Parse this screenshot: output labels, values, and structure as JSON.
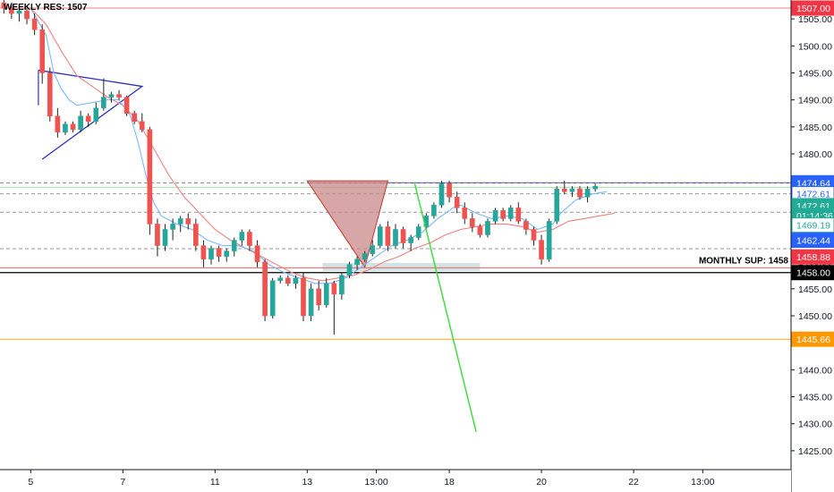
{
  "chart_data": {
    "type": "candlestick",
    "y_range": [
      1421.5,
      1508.5
    ],
    "y_ticks": [
      1425,
      1430,
      1435,
      1440,
      1445,
      1450,
      1455,
      1460,
      1465,
      1470,
      1475,
      1480,
      1485,
      1490,
      1495,
      1500,
      1505
    ],
    "y_tick_labels": [
      "1425.00",
      "1430.00",
      "1435.00",
      "1440.00",
      "1445.00",
      "1450.00",
      "1455.00",
      "1460.00",
      "1465.00",
      "1470.00",
      "1475.00",
      "1480.00",
      "1485.00",
      "1490.00",
      "1495.00",
      "1500.00",
      "1505.00"
    ],
    "x_range": [
      0,
      103
    ],
    "x_ticks": [
      {
        "x": 4,
        "label": "5"
      },
      {
        "x": 16,
        "label": "7"
      },
      {
        "x": 28,
        "label": "11"
      },
      {
        "x": 40,
        "label": "13"
      },
      {
        "x": 49,
        "label": "13:00"
      },
      {
        "x": 58.5,
        "label": "18"
      },
      {
        "x": 70.5,
        "label": "20"
      },
      {
        "x": 82.5,
        "label": "22"
      },
      {
        "x": 91.5,
        "label": "13:00"
      }
    ],
    "candles": [
      [
        1508,
        1509,
        1506,
        1507
      ],
      [
        1507,
        1508,
        1505,
        1506
      ],
      [
        1506,
        1507.5,
        1504.5,
        1506.5
      ],
      [
        1506.5,
        1507,
        1504,
        1505
      ],
      [
        1505,
        1506,
        1502,
        1503
      ],
      [
        1503,
        1504,
        1493,
        1495
      ],
      [
        1495,
        1496,
        1486,
        1487
      ],
      [
        1487,
        1488.5,
        1483,
        1484
      ],
      [
        1484,
        1486,
        1483.5,
        1485.5
      ],
      [
        1485.5,
        1486,
        1484,
        1484.5
      ],
      [
        1484.5,
        1488,
        1484,
        1487
      ],
      [
        1487,
        1487.5,
        1485,
        1486
      ],
      [
        1486,
        1489.5,
        1485.5,
        1488.5
      ],
      [
        1488.5,
        1494,
        1488,
        1490.5
      ],
      [
        1490.5,
        1491.5,
        1489.5,
        1491
      ],
      [
        1491,
        1491.8,
        1490,
        1490.5
      ],
      [
        1490.5,
        1490.8,
        1487,
        1487.5
      ],
      [
        1487.5,
        1488,
        1485.5,
        1486
      ],
      [
        1486,
        1487.5,
        1484,
        1484.5
      ],
      [
        1484.5,
        1485,
        1465,
        1467
      ],
      [
        1467,
        1468,
        1461,
        1463
      ],
      [
        1463,
        1467,
        1462,
        1466
      ],
      [
        1466,
        1468,
        1464,
        1467
      ],
      [
        1467,
        1468.5,
        1465.5,
        1468
      ],
      [
        1468,
        1469,
        1466,
        1467
      ],
      [
        1467,
        1468,
        1462,
        1463
      ],
      [
        1463,
        1464,
        1459,
        1460.5
      ],
      [
        1460.5,
        1463,
        1459.5,
        1462.5
      ],
      [
        1462.5,
        1463,
        1460,
        1461
      ],
      [
        1461,
        1462.5,
        1460,
        1462
      ],
      [
        1462,
        1464.5,
        1461,
        1464
      ],
      [
        1464,
        1466,
        1463,
        1465.5
      ],
      [
        1465.5,
        1466,
        1462,
        1463
      ],
      [
        1463,
        1464,
        1459,
        1460
      ],
      [
        1460,
        1460.5,
        1449,
        1450
      ],
      [
        1450,
        1457,
        1449.5,
        1456.5
      ],
      [
        1456.5,
        1457.5,
        1456,
        1457
      ],
      [
        1457,
        1457.5,
        1455.5,
        1456
      ],
      [
        1456,
        1457.5,
        1455,
        1457
      ],
      [
        1457,
        1458,
        1449,
        1450
      ],
      [
        1450,
        1456,
        1449,
        1455
      ],
      [
        1455,
        1456.5,
        1451,
        1452
      ],
      [
        1452,
        1457,
        1451.5,
        1456
      ],
      [
        1456,
        1456.5,
        1446.5,
        1454
      ],
      [
        1454,
        1458,
        1453,
        1457.5
      ],
      [
        1457.5,
        1460,
        1457,
        1459.5
      ],
      [
        1459.5,
        1461,
        1458.5,
        1460.5
      ],
      [
        1460.5,
        1462,
        1460,
        1461.5
      ],
      [
        1461.5,
        1464,
        1461,
        1463
      ],
      [
        1463,
        1467,
        1462.5,
        1466.5
      ],
      [
        1466.5,
        1467.5,
        1462,
        1463
      ],
      [
        1463,
        1467,
        1462.5,
        1466
      ],
      [
        1466,
        1466.5,
        1462.5,
        1463.5
      ],
      [
        1463.5,
        1465,
        1462,
        1464.5
      ],
      [
        1464.5,
        1467,
        1464,
        1466.5
      ],
      [
        1466.5,
        1469,
        1466,
        1468.5
      ],
      [
        1468.5,
        1471,
        1468,
        1470.5
      ],
      [
        1470.5,
        1475,
        1470,
        1474.5
      ],
      [
        1474.5,
        1475,
        1471,
        1472
      ],
      [
        1472,
        1473,
        1469,
        1470
      ],
      [
        1470,
        1471,
        1467,
        1468
      ],
      [
        1468,
        1469,
        1465.5,
        1466.5
      ],
      [
        1466.5,
        1467,
        1464.5,
        1465
      ],
      [
        1465,
        1468,
        1464.5,
        1467.5
      ],
      [
        1467.5,
        1470,
        1467,
        1469.5
      ],
      [
        1469.5,
        1470,
        1467.5,
        1468
      ],
      [
        1468,
        1470.5,
        1467.5,
        1470
      ],
      [
        1470,
        1471,
        1467,
        1467.5
      ],
      [
        1467.5,
        1468,
        1465,
        1466
      ],
      [
        1466,
        1466.5,
        1463,
        1464
      ],
      [
        1464,
        1465,
        1459.5,
        1460.5
      ],
      [
        1460.5,
        1468,
        1460,
        1467.5
      ],
      [
        1467.5,
        1474,
        1467,
        1473.5
      ],
      [
        1473.5,
        1475,
        1472.5,
        1473
      ],
      [
        1473,
        1474,
        1472,
        1473.5
      ],
      [
        1473.5,
        1474,
        1471.5,
        1472
      ],
      [
        1472,
        1474,
        1471,
        1473.5
      ],
      [
        1473.5,
        1474.5,
        1473,
        1474
      ]
    ],
    "ema_fast": [
      [
        4,
        1507
      ],
      [
        6,
        1502
      ],
      [
        7,
        1495
      ],
      [
        8,
        1492
      ],
      [
        9,
        1490
      ],
      [
        10,
        1489
      ],
      [
        12,
        1489.5
      ],
      [
        14,
        1490
      ],
      [
        15.5,
        1490
      ],
      [
        17,
        1487
      ],
      [
        18,
        1482
      ],
      [
        19,
        1476
      ],
      [
        20,
        1471
      ],
      [
        21,
        1468.5
      ],
      [
        23,
        1467
      ],
      [
        25,
        1466
      ],
      [
        27,
        1464
      ],
      [
        29,
        1463
      ],
      [
        31,
        1463
      ],
      [
        33,
        1462
      ],
      [
        35,
        1459.5
      ],
      [
        37,
        1458
      ],
      [
        39,
        1457
      ],
      [
        41,
        1456
      ],
      [
        43,
        1456
      ],
      [
        45,
        1457
      ],
      [
        47,
        1459
      ],
      [
        49,
        1461
      ],
      [
        51,
        1463
      ],
      [
        53,
        1464
      ],
      [
        55,
        1465.5
      ],
      [
        57,
        1468
      ],
      [
        59,
        1470
      ],
      [
        60,
        1470.5
      ],
      [
        62,
        1469
      ],
      [
        64,
        1468
      ],
      [
        66,
        1468.5
      ],
      [
        68,
        1468
      ],
      [
        70,
        1466
      ],
      [
        72,
        1467
      ],
      [
        73,
        1469
      ],
      [
        75,
        1471.5
      ],
      [
        77,
        1472.5
      ],
      [
        79,
        1473
      ]
    ],
    "ema_slow": [
      [
        4,
        1507
      ],
      [
        6,
        1504
      ],
      [
        8,
        1499
      ],
      [
        10,
        1494.5
      ],
      [
        12,
        1492.5
      ],
      [
        14,
        1490.5
      ],
      [
        16,
        1489
      ],
      [
        18,
        1486
      ],
      [
        20,
        1481
      ],
      [
        22,
        1476
      ],
      [
        24,
        1472
      ],
      [
        26,
        1469
      ],
      [
        28,
        1466
      ],
      [
        30,
        1464
      ],
      [
        32,
        1462.5
      ],
      [
        34,
        1461
      ],
      [
        36,
        1459.5
      ],
      [
        38,
        1458
      ],
      [
        40,
        1457
      ],
      [
        42,
        1456.5
      ],
      [
        44,
        1457
      ],
      [
        46,
        1457.5
      ],
      [
        48,
        1458.5
      ],
      [
        50,
        1460
      ],
      [
        52,
        1461
      ],
      [
        54,
        1462.5
      ],
      [
        56,
        1463.5
      ],
      [
        58,
        1465
      ],
      [
        60,
        1466
      ],
      [
        62,
        1466.5
      ],
      [
        64,
        1467
      ],
      [
        66,
        1467
      ],
      [
        68,
        1466.5
      ],
      [
        70,
        1465.5
      ],
      [
        72,
        1466
      ],
      [
        74,
        1467.5
      ],
      [
        76,
        1468
      ],
      [
        78,
        1468.5
      ],
      [
        80,
        1469
      ]
    ],
    "triangle_pattern": [
      [
        5,
        1495.5
      ],
      [
        18.5,
        1492.5
      ],
      [
        5.5,
        1479
      ]
    ],
    "pennant_marks": [
      [
        9,
        1494.5
      ],
      [
        9,
        1489
      ]
    ],
    "red_triangle": [
      [
        40,
        1475
      ],
      [
        50.5,
        1475
      ],
      [
        47.5,
        1459
      ]
    ],
    "monthly_zone": {
      "x1": 42,
      "x2": 62.5,
      "y1": 1458.3,
      "y2": 1459.8
    },
    "hlines": [
      {
        "y": 1507.0,
        "color": "#e88080",
        "style": "solid"
      },
      {
        "y": 1474.64,
        "color": "#2f2fbe",
        "style": "solid",
        "x_start": 40
      },
      {
        "y": 1474.64,
        "color": "#888888",
        "style": "dash"
      },
      {
        "y": 1473.8,
        "color": "#a8d8a8",
        "style": "solid"
      },
      {
        "y": 1472.61,
        "color": "#999999",
        "style": "dash"
      },
      {
        "y": 1469.19,
        "color": "#999999",
        "style": "dash"
      },
      {
        "y": 1462.44,
        "color": "#999999",
        "style": "dash"
      },
      {
        "y": 1458.88,
        "color": "#e06666",
        "style": "solid"
      },
      {
        "y": 1458.0,
        "color": "#000000",
        "style": "solid"
      },
      {
        "y": 1445.66,
        "color": "#f5a623",
        "style": "solid"
      }
    ],
    "projection_line": [
      [
        54,
        1474.5
      ],
      [
        62,
        1428.5
      ]
    ],
    "price_badges": [
      {
        "y": 1507.0,
        "label": "1507.00",
        "bg": "#f23645",
        "fg": "#ffffff",
        "border": "#f23645"
      },
      {
        "y": 1474.64,
        "label": "1474.64",
        "bg": "#2962ff",
        "fg": "#ffffff",
        "border": "#2962ff"
      },
      {
        "y": 1472.61,
        "label": "1472.61",
        "bg": "#ffffff",
        "fg": "#2962ff",
        "border": "#2962ff"
      },
      {
        "y": 1470.4,
        "label": "1472.61",
        "bg": "#22ab94",
        "fg": "#ffffff",
        "border": "#22ab94"
      },
      {
        "y": 1468.6,
        "label": "01:14:36",
        "bg": "#22ab94",
        "fg": "#ffffff",
        "border": "#22ab94"
      },
      {
        "y": 1466.8,
        "label": "1469.19",
        "bg": "#ffffff",
        "fg": "#22ab94",
        "border": "#22ab94"
      },
      {
        "y": 1464.0,
        "label": "1462.44",
        "bg": "#2962ff",
        "fg": "#ffffff",
        "border": "#2962ff"
      },
      {
        "y": 1460.9,
        "label": "1458.88",
        "bg": "#f23645",
        "fg": "#ffffff",
        "border": "#f23645"
      },
      {
        "y": 1458.0,
        "label": "1458.00",
        "bg": "#000000",
        "fg": "#ffffff",
        "border": "#000000"
      },
      {
        "y": 1445.66,
        "label": "1445.66",
        "bg": "#ff9800",
        "fg": "#ffffff",
        "border": "#ff9800"
      }
    ],
    "annotations": {
      "weekly_res": "WEEKLY RES: 1507",
      "monthly_sup": "MONTHLY SUP: 1458"
    },
    "colors": {
      "up": "#26a69a",
      "down": "#ef5350",
      "ema_fast": "#7ab8ff",
      "ema_slow": "#f08080",
      "triangle": "#2f2fbe",
      "red_triangle_fill": "#c98a8a",
      "zone_fill": "#c7dcdc",
      "projection": "#33dd33"
    },
    "grid": false
  }
}
